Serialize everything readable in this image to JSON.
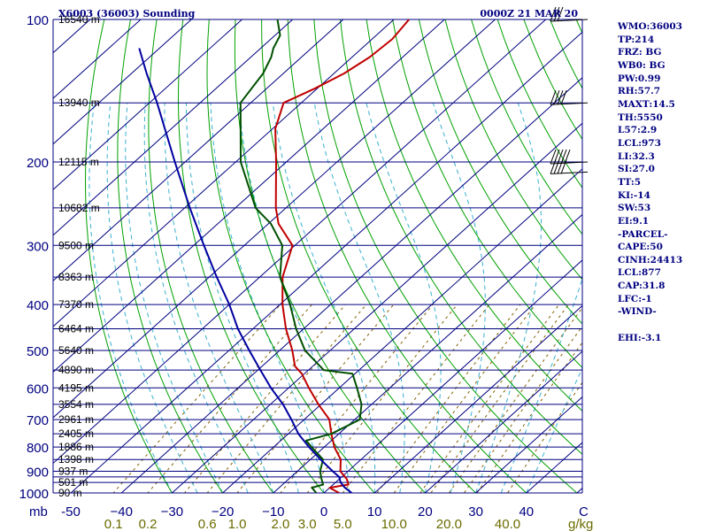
{
  "header": {
    "station": "X6003 (36003) Sounding",
    "time": "0000Z 21 MAR 20"
  },
  "indices": [
    "WMO:36003",
    "TP:214",
    "FRZ: BG",
    "WB0: BG",
    "PW:0.99",
    "RH:57.7",
    "MAXT:14.5",
    "TH:5550",
    "L57:2.9",
    "LCL:973",
    "LI:32.3",
    "SI:27.0",
    "TT:5",
    "KI:-14",
    "SW:53",
    "EI:9.1",
    "-PARCEL-",
    "CAPE:50",
    "CINH:24413",
    "LCL:877",
    "CAP:31.8",
    "LFC:-1",
    "-WIND-",
    "",
    "EHI:-3.1"
  ],
  "colors": {
    "isobar": "#000080",
    "skewed_isotherm": "#000080",
    "dry_adiabat": "#00a000",
    "moist_adiabat": "#3ab0d0",
    "mixing_ratio": "#806000",
    "temperature": "#c00000",
    "dewpoint": "#005000",
    "parcel": "#0000a0",
    "wind_barb": "#000000"
  },
  "chart_data": {
    "type": "skew-t log-p",
    "title": "X6003 (36003) Sounding",
    "subtitle": "0000Z 21 MAR 20",
    "y_axis": {
      "label": "mb",
      "scale": "log",
      "range": [
        1000,
        100
      ],
      "ticks": [
        100,
        200,
        300,
        400,
        500,
        600,
        700,
        800,
        900,
        1000
      ]
    },
    "x_axis": {
      "units": "C",
      "range": [
        -50,
        50
      ],
      "tick_labels": [
        "-50",
        "−40",
        "−30",
        "−20",
        "−10",
        "0",
        "10",
        "20",
        "30",
        "40"
      ],
      "ticks": [
        -50,
        -40,
        -30,
        -20,
        -10,
        0,
        10,
        20,
        30,
        40
      ]
    },
    "x_axis_label": "C",
    "mixing_ratio": {
      "units": "g/kg",
      "labels": [
        "0.1",
        "0.2",
        "0.6",
        "1.0",
        "2.0",
        "3.0",
        "5.0",
        "10.0",
        "20.0",
        "40.0"
      ],
      "values": [
        0.1,
        0.2,
        0.6,
        1.0,
        2.0,
        3.0,
        5.0,
        10.0,
        20.0,
        40.0
      ]
    },
    "height_labels": [
      {
        "p": 100,
        "text": "16540 m"
      },
      {
        "p": 150,
        "text": "13940 m"
      },
      {
        "p": 200,
        "text": "12115 m"
      },
      {
        "p": 250,
        "text": "10682 m"
      },
      {
        "p": 300,
        "text": "9500 m"
      },
      {
        "p": 350,
        "text": "8363 m"
      },
      {
        "p": 400,
        "text": "7370 m"
      },
      {
        "p": 450,
        "text": "6464 m"
      },
      {
        "p": 500,
        "text": "5640 m"
      },
      {
        "p": 550,
        "text": "4890 m"
      },
      {
        "p": 600,
        "text": "4195 m"
      },
      {
        "p": 650,
        "text": "3554 m"
      },
      {
        "p": 700,
        "text": "2961 m"
      },
      {
        "p": 750,
        "text": "2405 m"
      },
      {
        "p": 800,
        "text": "1886 m"
      },
      {
        "p": 850,
        "text": "1398 m"
      },
      {
        "p": 900,
        "text": "937 m"
      },
      {
        "p": 950,
        "text": "501 m"
      },
      {
        "p": 1000,
        "text": "90 m"
      }
    ],
    "isobars": [
      100,
      150,
      200,
      250,
      300,
      350,
      400,
      450,
      500,
      550,
      600,
      650,
      700,
      750,
      800,
      850,
      900,
      925,
      950,
      1000
    ],
    "series": [
      {
        "values": [
          {
            "p": 1000,
            "t": 3.0
          },
          {
            "p": 975,
            "t": 0.0
          },
          {
            "p": 960,
            "t": 3.0
          },
          {
            "p": 935,
            "t": 1.5
          },
          {
            "p": 900,
            "t": -1.5
          },
          {
            "p": 850,
            "t": -4.0
          },
          {
            "p": 800,
            "t": -8.0
          },
          {
            "p": 750,
            "t": -11.5
          },
          {
            "p": 700,
            "t": -15.0
          },
          {
            "p": 650,
            "t": -20.5
          },
          {
            "p": 600,
            "t": -26.0
          },
          {
            "p": 560,
            "t": -30.5
          },
          {
            "p": 540,
            "t": -33.5
          },
          {
            "p": 500,
            "t": -37.5
          },
          {
            "p": 450,
            "t": -43.5
          },
          {
            "p": 400,
            "t": -49.5
          },
          {
            "p": 350,
            "t": -55.5
          },
          {
            "p": 300,
            "t": -60.5
          },
          {
            "p": 270,
            "t": -68.0
          },
          {
            "p": 250,
            "t": -72.0
          },
          {
            "p": 200,
            "t": -82.0
          },
          {
            "p": 170,
            "t": -89.5
          },
          {
            "p": 150,
            "t": -93.5
          },
          {
            "p": 140,
            "t": -90.5
          },
          {
            "p": 130,
            "t": -88.0
          },
          {
            "p": 120,
            "t": -86.5
          },
          {
            "p": 110,
            "t": -86.0
          },
          {
            "p": 100,
            "t": -87.0
          }
        ]
      },
      {
        "values": [
          {
            "p": 1000,
            "t": -1.5
          },
          {
            "p": 975,
            "t": -3.5
          },
          {
            "p": 960,
            "t": -2.0
          },
          {
            "p": 935,
            "t": -3.5
          },
          {
            "p": 900,
            "t": -5.5
          },
          {
            "p": 850,
            "t": -7.5
          },
          {
            "p": 800,
            "t": -12.5
          },
          {
            "p": 775,
            "t": -15.0
          },
          {
            "p": 750,
            "t": -11.5
          },
          {
            "p": 700,
            "t": -9.0
          },
          {
            "p": 650,
            "t": -12.0
          },
          {
            "p": 600,
            "t": -16.5
          },
          {
            "p": 560,
            "t": -20.5
          },
          {
            "p": 550,
            "t": -27.0
          },
          {
            "p": 500,
            "t": -35.0
          },
          {
            "p": 450,
            "t": -41.5
          },
          {
            "p": 400,
            "t": -48.0
          },
          {
            "p": 350,
            "t": -56.0
          },
          {
            "p": 300,
            "t": -62.5
          },
          {
            "p": 270,
            "t": -69.5
          },
          {
            "p": 250,
            "t": -76.0
          },
          {
            "p": 200,
            "t": -89.0
          },
          {
            "p": 150,
            "t": -102.0
          },
          {
            "p": 130,
            "t": -104.0
          },
          {
            "p": 120,
            "t": -106.0
          },
          {
            "p": 115,
            "t": -107.5
          },
          {
            "p": 108,
            "t": -109.0
          },
          {
            "p": 100,
            "t": -113.0
          }
        ]
      },
      {
        "values": [
          {
            "p": 1000,
            "t": 5.5
          },
          {
            "p": 975,
            "t": 3.0
          },
          {
            "p": 950,
            "t": 1.0
          },
          {
            "p": 925,
            "t": -0.5
          },
          {
            "p": 900,
            "t": -3.0
          },
          {
            "p": 850,
            "t": -8.0
          },
          {
            "p": 800,
            "t": -13.0
          },
          {
            "p": 750,
            "t": -18.0
          },
          {
            "p": 700,
            "t": -22.5
          },
          {
            "p": 650,
            "t": -27.5
          },
          {
            "p": 600,
            "t": -33.5
          },
          {
            "p": 550,
            "t": -39.5
          },
          {
            "p": 500,
            "t": -46.0
          },
          {
            "p": 450,
            "t": -53.0
          },
          {
            "p": 400,
            "t": -60.0
          },
          {
            "p": 350,
            "t": -68.5
          },
          {
            "p": 300,
            "t": -78.0
          },
          {
            "p": 250,
            "t": -89.0
          },
          {
            "p": 200,
            "t": -102.0
          },
          {
            "p": 150,
            "t": -118.5
          },
          {
            "p": 130,
            "t": -127.0
          },
          {
            "p": 115,
            "t": -134.0
          }
        ]
      }
    ],
    "wind_barbs": [
      {
        "p": 100,
        "flags": 0,
        "barbs": 3
      },
      {
        "p": 150,
        "flags": 0,
        "barbs": 4
      },
      {
        "p": 200,
        "flags": 0,
        "barbs": 5
      },
      {
        "p": 210,
        "flags": 0,
        "barbs": 4
      }
    ],
    "grid": true
  }
}
